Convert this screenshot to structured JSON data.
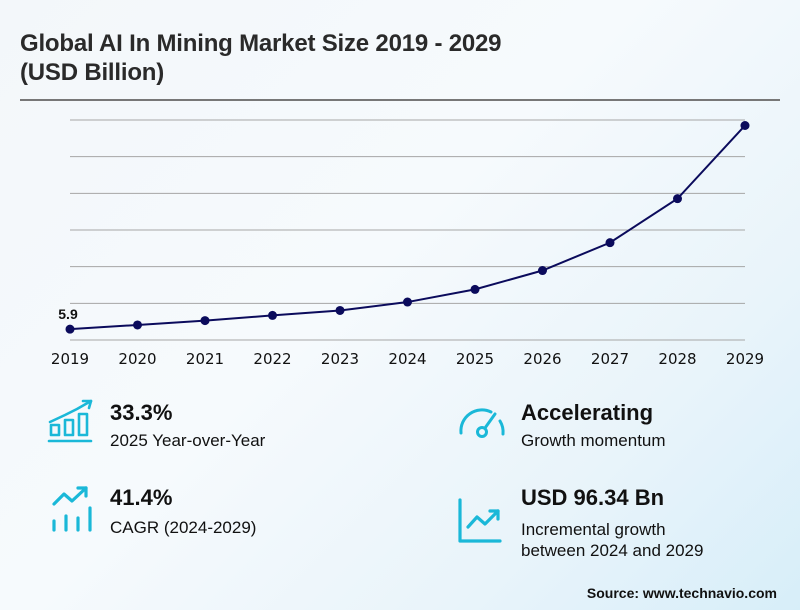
{
  "header": {
    "title_line1": "Global AI In Mining Market Size 2019 - 2029",
    "title_line2": "(USD Billion)"
  },
  "chart_data": {
    "type": "line",
    "title": "Global AI In Mining Market Size 2019 - 2029 (USD Billion)",
    "xlabel": "",
    "ylabel": "",
    "categories": [
      "2019",
      "2020",
      "2021",
      "2022",
      "2023",
      "2024",
      "2025",
      "2026",
      "2027",
      "2028",
      "2029"
    ],
    "series": [
      {
        "name": "Market Size (USD Billion)",
        "values": [
          5.9,
          8.2,
          10.6,
          13.4,
          16.1,
          20.7,
          27.6,
          37.9,
          53.1,
          77.1,
          117.0
        ],
        "color": "#0b0b5c"
      }
    ],
    "data_labels": [
      {
        "index": 0,
        "text": "5.9"
      }
    ],
    "ylim": [
      0,
      120
    ],
    "y_gridlines": [
      0,
      20,
      40,
      60,
      80,
      100,
      120
    ],
    "grid": true,
    "show_y_tick_labels": false,
    "legend": "none"
  },
  "kpis": [
    {
      "icon": "bar-chart-growth-icon",
      "value": "33.3%",
      "label": "2025 Year-over-Year"
    },
    {
      "icon": "speedometer-icon",
      "value": "Accelerating",
      "label": "Growth momentum"
    },
    {
      "icon": "trend-up-bars-icon",
      "value": "41.4%",
      "label": "CAGR (2024-2029)"
    },
    {
      "icon": "line-chart-up-icon",
      "value": "USD 96.34 Bn",
      "label_line1": "Incremental growth",
      "label_line2": "between 2024 and 2029"
    }
  ],
  "colors": {
    "accent": "#1ab8d8",
    "line": "#0b0b5c",
    "grid": "#a6a6a6"
  },
  "footer": {
    "source": "Source: www.technavio.com"
  }
}
